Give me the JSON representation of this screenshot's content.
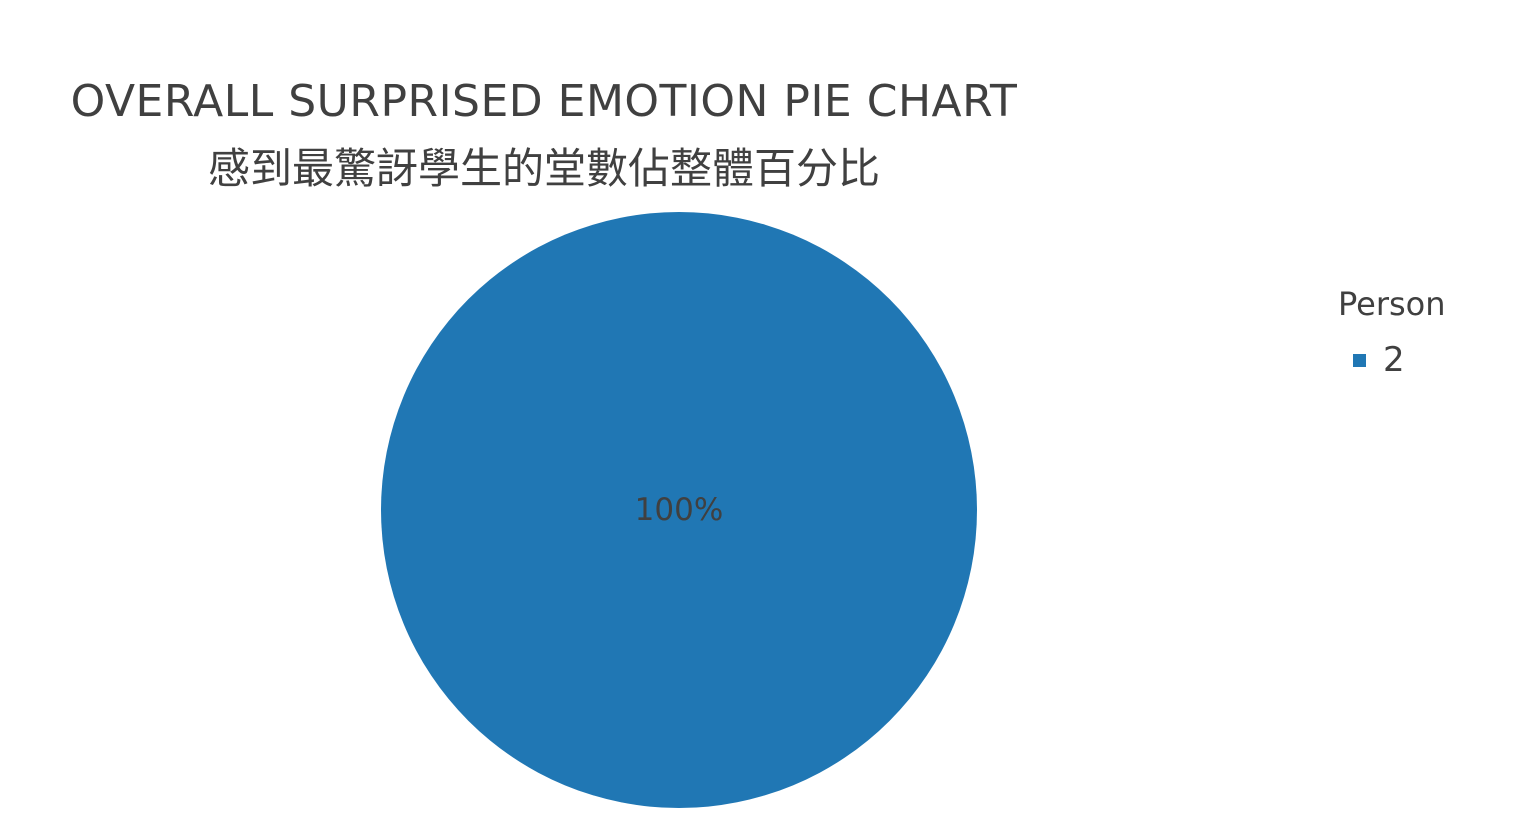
{
  "chart_data": {
    "type": "pie",
    "title": "OVERALL SURPRISED EMOTION PIE CHART",
    "subtitle": "感到最驚訝學生的堂數佔整體百分比",
    "legend_title": "Person",
    "legend_position": "right",
    "slices": [
      {
        "label": "2",
        "value": 100,
        "display": "100%",
        "color": "#2077b4"
      }
    ]
  }
}
